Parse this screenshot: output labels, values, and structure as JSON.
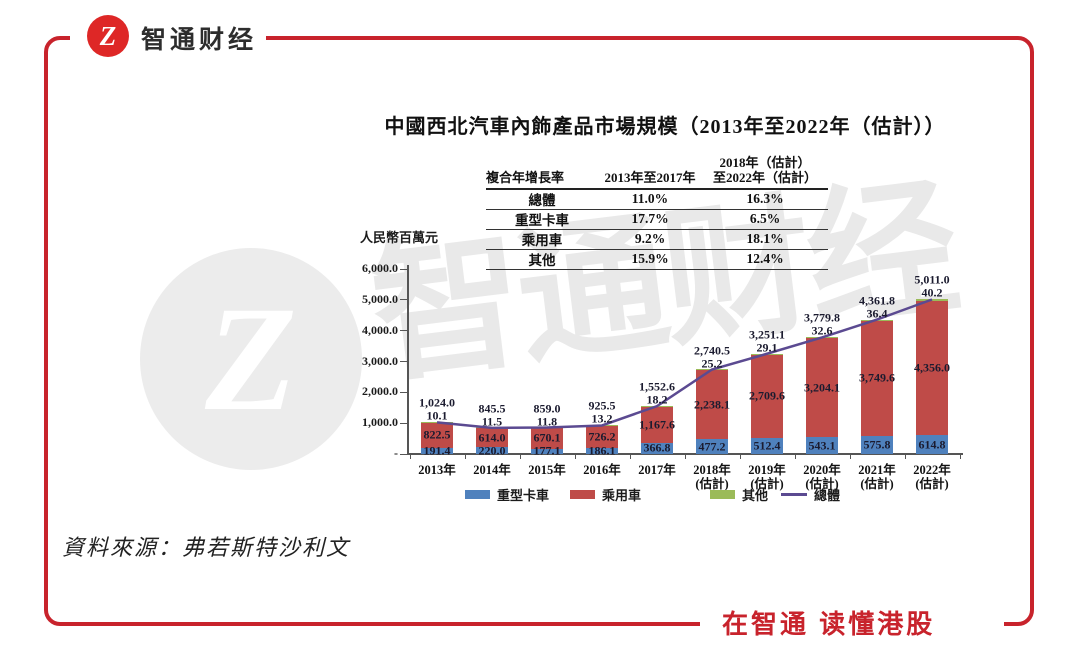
{
  "brand": {
    "logo_glyph": "Z",
    "logo_text": "智通财经",
    "slogan": "在智通 读懂港股",
    "colors": {
      "frame_red": "#c8232c",
      "logo_red": "#de2726"
    }
  },
  "figure": {
    "title": "中國西北汽車內飾產品市場規模（2013年至2022年（估計））",
    "unit_label": "人民幣百萬元",
    "source": "資料來源：弗若斯特沙利文",
    "watermark_text": "智通财经",
    "watermark_glyph": "Z"
  },
  "cagr_table": {
    "headers": [
      "複合年增長率",
      "2013年至2017年",
      "2018年（估計）\n至2022年（估計）"
    ],
    "rows": [
      [
        "總體",
        "11.0%",
        "16.3%"
      ],
      [
        "重型卡車",
        "17.7%",
        "6.5%"
      ],
      [
        "乘用車",
        "9.2%",
        "18.1%"
      ],
      [
        "其他",
        "15.9%",
        "12.4%"
      ]
    ]
  },
  "chart_data": {
    "type": "bar",
    "subtype": "stacked-bars-with-total-line",
    "title": "中國西北汽車內飾產品市場規模（2013年至2022年（估計））",
    "ylabel": "人民幣百萬元",
    "ylim": [
      0,
      6000
    ],
    "ytick_labels": [
      "6,000.0",
      "5,000.0",
      "4,000.0",
      "3,000.0",
      "2,000.0",
      "1,000.0",
      "-"
    ],
    "grid": false,
    "legend_position": "bottom",
    "categories": [
      {
        "label": "2013年",
        "sub": ""
      },
      {
        "label": "2014年",
        "sub": ""
      },
      {
        "label": "2015年",
        "sub": ""
      },
      {
        "label": "2016年",
        "sub": ""
      },
      {
        "label": "2017年",
        "sub": ""
      },
      {
        "label": "2018年",
        "sub": "(估計)"
      },
      {
        "label": "2019年",
        "sub": "(估計)"
      },
      {
        "label": "2020年",
        "sub": "(估計)"
      },
      {
        "label": "2021年",
        "sub": "(估計)"
      },
      {
        "label": "2022年",
        "sub": "(估計)"
      }
    ],
    "series": [
      {
        "name": "重型卡車",
        "kind": "bar",
        "color": "#4f81bd",
        "values": [
          191.4,
          220.0,
          177.1,
          186.1,
          366.8,
          477.2,
          512.4,
          543.1,
          575.8,
          614.8
        ]
      },
      {
        "name": "乘用車",
        "kind": "bar",
        "color": "#bf4b48",
        "values": [
          822.5,
          614.0,
          670.1,
          726.2,
          1167.6,
          2238.1,
          2709.6,
          3204.1,
          3749.6,
          4356.0
        ]
      },
      {
        "name": "其他",
        "kind": "bar",
        "color": "#9bbb59",
        "values": [
          10.1,
          11.5,
          11.8,
          13.2,
          18.2,
          25.2,
          29.1,
          32.6,
          36.4,
          40.2
        ]
      },
      {
        "name": "總體",
        "kind": "line",
        "color": "#5b4a91",
        "values": [
          1024.0,
          845.5,
          859.0,
          925.5,
          1552.6,
          2740.5,
          3251.1,
          3779.8,
          4361.8,
          5011.0
        ]
      }
    ]
  }
}
